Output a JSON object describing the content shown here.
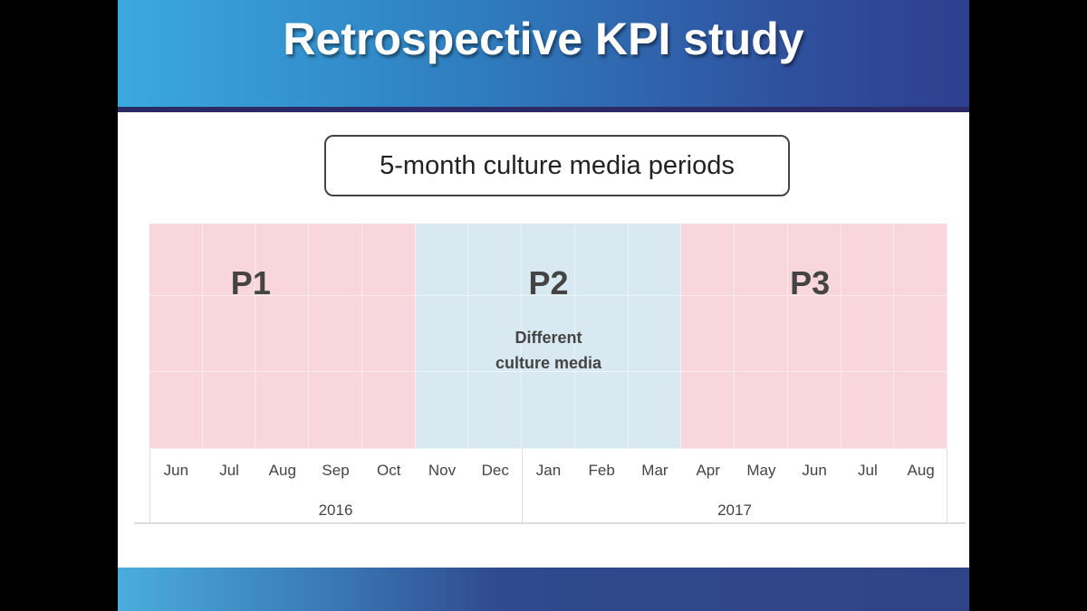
{
  "title": "Retrospective KPI study",
  "subtitle_box": "5-month culture media periods",
  "periods": [
    {
      "label": "P1",
      "start": "Jun 2016",
      "end": "Oct 2016",
      "color": "#f9d6dc"
    },
    {
      "label": "P2",
      "start": "Nov 2016",
      "end": "Mar 2017",
      "color": "#d9e9f1",
      "note": [
        "Different",
        "culture media"
      ]
    },
    {
      "label": "P3",
      "start": "Apr 2017",
      "end": "Aug 2017",
      "color": "#f9d6dc"
    }
  ],
  "months": [
    "Jun",
    "Jul",
    "Aug",
    "Sep",
    "Oct",
    "Nov",
    "Dec",
    "Jan",
    "Feb",
    "Mar",
    "Apr",
    "May",
    "Jun",
    "Jul",
    "Aug"
  ],
  "years": [
    "2016",
    "2017"
  ]
}
